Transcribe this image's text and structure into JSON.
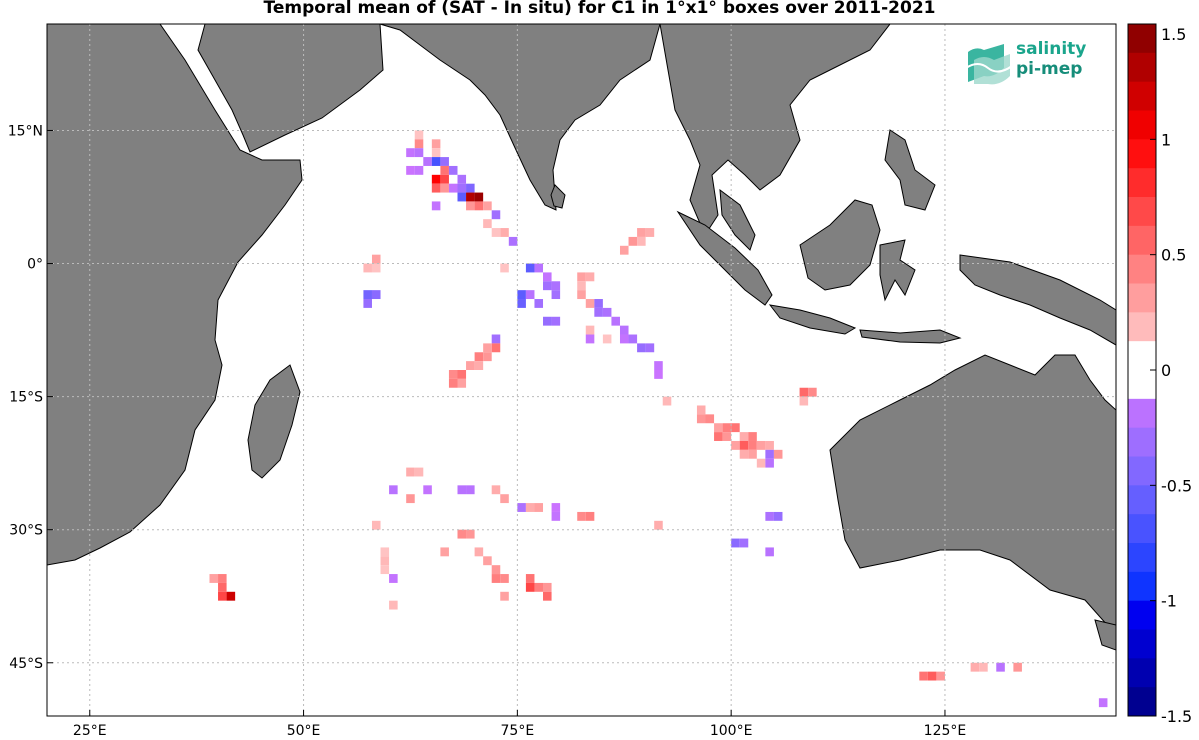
{
  "title": "Temporal mean of (SAT - In situ) for C1 in 1°x1° boxes over 2011-2021",
  "logo": {
    "line1": "salinity",
    "line2": "pi-mep"
  },
  "map": {
    "lon_range": [
      20,
      145
    ],
    "lat_range": [
      -51,
      27
    ],
    "lon_ticks": [
      {
        "v": 25,
        "label": "25°E"
      },
      {
        "v": 50,
        "label": "50°E"
      },
      {
        "v": 75,
        "label": "75°E"
      },
      {
        "v": 100,
        "label": "100°E"
      },
      {
        "v": 125,
        "label": "125°E"
      }
    ],
    "lat_ticks": [
      {
        "v": 15,
        "label": "15°N"
      },
      {
        "v": 0,
        "label": "0°"
      },
      {
        "v": -15,
        "label": "15°S"
      },
      {
        "v": -30,
        "label": "30°S"
      },
      {
        "v": -45,
        "label": "45°S"
      }
    ],
    "land_color": "#808080",
    "grid": true
  },
  "colorbar": {
    "range": [
      -1.5,
      1.5
    ],
    "ticks": [
      {
        "v": 1.5,
        "label": "1.5"
      },
      {
        "v": 1,
        "label": "1"
      },
      {
        "v": 0.5,
        "label": "0.5"
      },
      {
        "v": 0,
        "label": "0"
      },
      {
        "v": -0.5,
        "label": "-0.5"
      },
      {
        "v": -1,
        "label": "-1"
      },
      {
        "v": -1.5,
        "label": "-1.5"
      }
    ],
    "low_color": "#000080",
    "mid_color": "#ffffff",
    "high_color": "#800000"
  },
  "chart_data": {
    "type": "heatmap",
    "cell_size_deg": 1,
    "cells": [
      [
        63,
        14,
        0.15
      ],
      [
        63,
        13,
        0.4
      ],
      [
        65,
        13,
        0.3
      ],
      [
        62,
        12,
        -0.15
      ],
      [
        63,
        12,
        -0.2
      ],
      [
        65,
        12,
        0.15
      ],
      [
        64,
        11,
        -0.2
      ],
      [
        65,
        11,
        -0.7
      ],
      [
        66,
        11,
        -0.35
      ],
      [
        62,
        10,
        -0.12
      ],
      [
        63,
        10,
        -0.15
      ],
      [
        66,
        10,
        0.5
      ],
      [
        67,
        10,
        -0.3
      ],
      [
        65,
        9,
        1.0
      ],
      [
        66,
        9,
        0.7
      ],
      [
        68,
        9,
        -0.25
      ],
      [
        65,
        8,
        0.6
      ],
      [
        66,
        8,
        0.35
      ],
      [
        67,
        8,
        -0.15
      ],
      [
        68,
        8,
        -0.3
      ],
      [
        69,
        8,
        -0.45
      ],
      [
        68,
        7,
        -0.6
      ],
      [
        69,
        7,
        1.3
      ],
      [
        70,
        7,
        1.4
      ],
      [
        65,
        6,
        -0.15
      ],
      [
        69,
        6,
        0.35
      ],
      [
        70,
        6,
        0.5
      ],
      [
        71,
        6,
        0.3
      ],
      [
        72,
        5,
        -0.3
      ],
      [
        71,
        4,
        0.2
      ],
      [
        73,
        3,
        0.25
      ],
      [
        72,
        3,
        0.15
      ],
      [
        74,
        2,
        -0.25
      ],
      [
        89,
        3,
        0.3
      ],
      [
        90,
        3,
        0.25
      ],
      [
        88,
        2,
        0.35
      ],
      [
        89,
        2,
        0.2
      ],
      [
        87,
        1,
        0.3
      ],
      [
        58,
        0,
        0.3
      ],
      [
        57,
        -1,
        0.2
      ],
      [
        58,
        -1,
        0.15
      ],
      [
        73,
        -1,
        0.15
      ],
      [
        76,
        -1,
        -0.6
      ],
      [
        77,
        -1,
        -0.2
      ],
      [
        78,
        -2,
        -0.15
      ],
      [
        82,
        -2,
        0.3
      ],
      [
        83,
        -2,
        0.25
      ],
      [
        78,
        -3,
        -0.3
      ],
      [
        79,
        -3,
        -0.25
      ],
      [
        82,
        -3,
        0.2
      ],
      [
        57,
        -4,
        -0.5
      ],
      [
        58,
        -4,
        -0.4
      ],
      [
        75,
        -4,
        -0.6
      ],
      [
        76,
        -4,
        -0.2
      ],
      [
        79,
        -4,
        -0.3
      ],
      [
        82,
        -4,
        0.3
      ],
      [
        83,
        -5,
        0.3
      ],
      [
        84,
        -5,
        -0.35
      ],
      [
        57,
        -5,
        -0.35
      ],
      [
        75,
        -5,
        -0.55
      ],
      [
        77,
        -5,
        -0.3
      ],
      [
        84,
        -6,
        -0.3
      ],
      [
        85,
        -6,
        -0.25
      ],
      [
        78,
        -7,
        -0.35
      ],
      [
        79,
        -7,
        -0.3
      ],
      [
        86,
        -7,
        -0.2
      ],
      [
        83,
        -8,
        0.2
      ],
      [
        87,
        -8,
        -0.2
      ],
      [
        72,
        -9,
        -0.3
      ],
      [
        83,
        -9,
        -0.15
      ],
      [
        85,
        -9,
        0.15
      ],
      [
        87,
        -9,
        -0.15
      ],
      [
        88,
        -9,
        -0.25
      ],
      [
        72,
        -10,
        0.5
      ],
      [
        71,
        -10,
        0.3
      ],
      [
        89,
        -10,
        -0.35
      ],
      [
        90,
        -10,
        -0.3
      ],
      [
        70,
        -11,
        0.45
      ],
      [
        71,
        -11,
        0.35
      ],
      [
        69,
        -12,
        0.3
      ],
      [
        70,
        -12,
        0.25
      ],
      [
        91,
        -12,
        -0.15
      ],
      [
        67,
        -13,
        0.4
      ],
      [
        68,
        -13,
        0.5
      ],
      [
        67,
        -14,
        0.45
      ],
      [
        68,
        -14,
        0.3
      ],
      [
        91,
        -13,
        -0.12
      ],
      [
        92,
        -16,
        0.2
      ],
      [
        108,
        -15,
        0.55
      ],
      [
        109,
        -15,
        0.4
      ],
      [
        108,
        -16,
        0.2
      ],
      [
        96,
        -17,
        0.25
      ],
      [
        96,
        -18,
        0.35
      ],
      [
        97,
        -18,
        0.4
      ],
      [
        98,
        -19,
        0.3
      ],
      [
        99,
        -19,
        0.45
      ],
      [
        100,
        -19,
        0.5
      ],
      [
        98,
        -20,
        0.5
      ],
      [
        99,
        -20,
        0.35
      ],
      [
        101,
        -20,
        0.25
      ],
      [
        102,
        -20,
        0.45
      ],
      [
        100,
        -21,
        0.3
      ],
      [
        101,
        -21,
        0.6
      ],
      [
        102,
        -21,
        0.45
      ],
      [
        103,
        -21,
        0.3
      ],
      [
        104,
        -21,
        0.25
      ],
      [
        101,
        -22,
        0.25
      ],
      [
        102,
        -22,
        0.3
      ],
      [
        104,
        -22,
        -0.3
      ],
      [
        105,
        -22,
        0.35
      ],
      [
        103,
        -23,
        0.2
      ],
      [
        104,
        -23,
        -0.2
      ],
      [
        62,
        -24,
        0.25
      ],
      [
        63,
        -24,
        0.2
      ],
      [
        60,
        -26,
        -0.2
      ],
      [
        64,
        -26,
        -0.15
      ],
      [
        68,
        -26,
        -0.2
      ],
      [
        69,
        -26,
        -0.2
      ],
      [
        72,
        -26,
        0.25
      ],
      [
        62,
        -27,
        0.35
      ],
      [
        73,
        -27,
        0.3
      ],
      [
        75,
        -28,
        -0.25
      ],
      [
        76,
        -28,
        0.25
      ],
      [
        77,
        -28,
        0.3
      ],
      [
        79,
        -28,
        -0.12
      ],
      [
        79,
        -29,
        -0.15
      ],
      [
        82,
        -29,
        0.4
      ],
      [
        83,
        -29,
        0.45
      ],
      [
        104,
        -29,
        -0.25
      ],
      [
        105,
        -29,
        -0.35
      ],
      [
        58,
        -30,
        0.2
      ],
      [
        91,
        -30,
        0.25
      ],
      [
        68,
        -31,
        0.4
      ],
      [
        69,
        -31,
        0.35
      ],
      [
        100,
        -32,
        -0.4
      ],
      [
        101,
        -32,
        -0.3
      ],
      [
        59,
        -33,
        0.15
      ],
      [
        66,
        -33,
        0.3
      ],
      [
        70,
        -33,
        0.25
      ],
      [
        104,
        -33,
        -0.2
      ],
      [
        59,
        -34,
        0.2
      ],
      [
        71,
        -34,
        0.3
      ],
      [
        59,
        -35,
        0.15
      ],
      [
        72,
        -35,
        0.35
      ],
      [
        72,
        -36,
        0.45
      ],
      [
        73,
        -36,
        0.4
      ],
      [
        60,
        -36,
        -0.15
      ],
      [
        39,
        -36,
        0.3
      ],
      [
        40,
        -36,
        0.45
      ],
      [
        76,
        -36,
        0.5
      ],
      [
        40,
        -37,
        0.55
      ],
      [
        76,
        -37,
        0.7
      ],
      [
        77,
        -37,
        0.45
      ],
      [
        78,
        -37,
        0.35
      ],
      [
        40,
        -38,
        0.7
      ],
      [
        41,
        -38,
        1.2
      ],
      [
        73,
        -38,
        0.3
      ],
      [
        78,
        -38,
        0.55
      ],
      [
        60,
        -39,
        0.2
      ],
      [
        128,
        -46,
        0.25
      ],
      [
        129,
        -46,
        0.2
      ],
      [
        131,
        -46,
        -0.2
      ],
      [
        133,
        -46,
        0.35
      ],
      [
        122,
        -47,
        0.5
      ],
      [
        123,
        -47,
        0.6
      ],
      [
        124,
        -47,
        0.35
      ],
      [
        143,
        -50,
        -0.15
      ]
    ]
  }
}
